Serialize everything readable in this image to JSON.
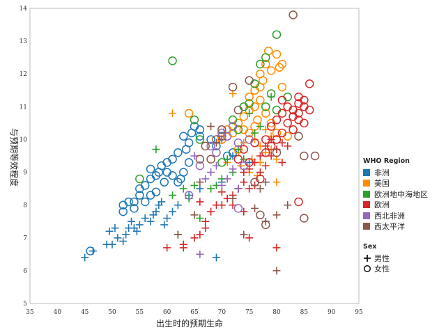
{
  "chart_data": {
    "type": "scatter",
    "title": "",
    "xlabel": "出生时的预期生命",
    "ylabel": "与预期等效程度",
    "xlim": [
      35,
      95
    ],
    "ylim": [
      5,
      14
    ],
    "x_ticks": [
      35,
      40,
      45,
      50,
      55,
      60,
      65,
      70,
      75,
      80,
      85,
      90,
      95
    ],
    "y_ticks": [
      5,
      6,
      7,
      8,
      9,
      10,
      11,
      12,
      13,
      14
    ],
    "grid": false,
    "legend_position": "right",
    "legend": {
      "color_title": "WHO Region",
      "shape_title": "Sex",
      "regions": [
        {
          "name": "非洲",
          "color": "#1f77b4"
        },
        {
          "name": "美国",
          "color": "#ff8c00"
        },
        {
          "name": "欧洲地中海地区",
          "color": "#2ca02c"
        },
        {
          "name": "欧洲",
          "color": "#d62728"
        },
        {
          "name": "西北非洲",
          "color": "#9467bd"
        },
        {
          "name": "西太平洋",
          "color": "#8c564b"
        }
      ],
      "sexes": [
        {
          "name": "男性",
          "marker": "plus"
        },
        {
          "name": "女性",
          "marker": "circle"
        }
      ]
    },
    "series": [
      {
        "name": "非洲",
        "sex": "男性",
        "points": [
          [
            45,
            6.4
          ],
          [
            46.5,
            6.6
          ],
          [
            49,
            6.8
          ],
          [
            50,
            6.8
          ],
          [
            49.5,
            7.2
          ],
          [
            50.5,
            7.3
          ],
          [
            51,
            7.0
          ],
          [
            52,
            6.9
          ],
          [
            52.5,
            7.1
          ],
          [
            53,
            7.3
          ],
          [
            53.5,
            7.5
          ],
          [
            54,
            7.3
          ],
          [
            54.5,
            7.2
          ],
          [
            55,
            7.4
          ],
          [
            56,
            7.6
          ],
          [
            57,
            7.5
          ],
          [
            57.5,
            7.7
          ],
          [
            58,
            7.8
          ],
          [
            58.5,
            8.0
          ],
          [
            59,
            8.1
          ],
          [
            59.5,
            7.4
          ],
          [
            60,
            7.6
          ],
          [
            61,
            7.8
          ],
          [
            62,
            8.0
          ],
          [
            64,
            8.3
          ],
          [
            66,
            8.5
          ],
          [
            69,
            6.4
          ],
          [
            70,
            8.7
          ],
          [
            72,
            9.5
          ],
          [
            73,
            8.5
          ],
          [
            75,
            9.3
          ]
        ]
      },
      {
        "name": "非洲",
        "sex": "女性",
        "points": [
          [
            46,
            6.6
          ],
          [
            52,
            7.8
          ],
          [
            52,
            8.0
          ],
          [
            53,
            8.1
          ],
          [
            54,
            8.1
          ],
          [
            54,
            7.9
          ],
          [
            55,
            8.3
          ],
          [
            55,
            8.5
          ],
          [
            56,
            8.6
          ],
          [
            56,
            8.1
          ],
          [
            57,
            8.3
          ],
          [
            57,
            8.8
          ],
          [
            57,
            9.1
          ],
          [
            58,
            8.4
          ],
          [
            58,
            8.9
          ],
          [
            58.5,
            9.0
          ],
          [
            59,
            9.2
          ],
          [
            59.5,
            8.7
          ],
          [
            60,
            9.0
          ],
          [
            60,
            9.3
          ],
          [
            61,
            8.9
          ],
          [
            61,
            9.4
          ],
          [
            62,
            8.7
          ],
          [
            62,
            9.6
          ],
          [
            63,
            9.0
          ],
          [
            63,
            10.1
          ],
          [
            64,
            9.3
          ],
          [
            64,
            9.9
          ],
          [
            64.5,
            10.2
          ],
          [
            65,
            10.4
          ],
          [
            66,
            10.3
          ],
          [
            66,
            10.1
          ],
          [
            68,
            10.0
          ],
          [
            69,
            9.8
          ],
          [
            70,
            10.1
          ],
          [
            71,
            9.5
          ],
          [
            72,
            9.6
          ],
          [
            63.5,
            9.7
          ],
          [
            62.5,
            8.8
          ]
        ]
      },
      {
        "name": "美国",
        "sex": "男性",
        "points": [
          [
            61,
            10.8
          ],
          [
            72,
            11.4
          ],
          [
            73,
            9.6
          ],
          [
            74,
            9.9
          ],
          [
            75,
            9.0
          ],
          [
            75.5,
            9.4
          ],
          [
            76,
            10.0
          ],
          [
            77,
            9.8
          ],
          [
            77,
            9.3
          ],
          [
            78,
            10.3
          ],
          [
            78,
            9.6
          ],
          [
            79,
            9.7
          ],
          [
            79,
            10.1
          ],
          [
            80,
            9.4
          ],
          [
            80,
            8.7
          ],
          [
            71,
            9.3
          ],
          [
            73.5,
            9.2
          ],
          [
            76.5,
            8.9
          ]
        ]
      },
      {
        "name": "美国",
        "sex": "女性",
        "points": [
          [
            64,
            10.8
          ],
          [
            70,
            10.0
          ],
          [
            71,
            10.3
          ],
          [
            72,
            10.2
          ],
          [
            73,
            10.5
          ],
          [
            74,
            10.7
          ],
          [
            75,
            10.9
          ],
          [
            75,
            11.3
          ],
          [
            76,
            11.0
          ],
          [
            76,
            11.5
          ],
          [
            77,
            11.2
          ],
          [
            77,
            11.6
          ],
          [
            77,
            12.0
          ],
          [
            77.5,
            11.8
          ],
          [
            78,
            12.3
          ],
          [
            78,
            10.8
          ],
          [
            78.5,
            12.7
          ],
          [
            79,
            12.1
          ],
          [
            80,
            12.6
          ],
          [
            80.5,
            12.2
          ],
          [
            81,
            12.3
          ],
          [
            81,
            11.6
          ],
          [
            76,
            10.4
          ],
          [
            75,
            10.2
          ],
          [
            74,
            10.3
          ],
          [
            79,
            10.5
          ],
          [
            80,
            10.2
          ],
          [
            76.5,
            10.6
          ],
          [
            73,
            9.7
          ],
          [
            82,
            10.1
          ]
        ]
      },
      {
        "name": "欧洲地中海地区",
        "sex": "男性",
        "points": [
          [
            58,
            9.7
          ],
          [
            61,
            8.3
          ],
          [
            63,
            8.5
          ],
          [
            64,
            8.2
          ],
          [
            65,
            8.6
          ],
          [
            66,
            7.6
          ],
          [
            68,
            8.5
          ],
          [
            70,
            8.8
          ],
          [
            71,
            9.4
          ],
          [
            72,
            9.0
          ],
          [
            73,
            9.7
          ],
          [
            74,
            9.4
          ],
          [
            75,
            10.8
          ],
          [
            76,
            10.2
          ],
          [
            77,
            10.4
          ],
          [
            79,
            11.3
          ],
          [
            62,
            7.1
          ],
          [
            69,
            8.6
          ]
        ]
      },
      {
        "name": "欧洲地中海地区",
        "sex": "女性",
        "points": [
          [
            55,
            8.8
          ],
          [
            61,
            12.4
          ],
          [
            65,
            10.6
          ],
          [
            66,
            10.0
          ],
          [
            70,
            9.3
          ],
          [
            72,
            10.6
          ],
          [
            73,
            10.3
          ],
          [
            74,
            11.0
          ],
          [
            75,
            11.1
          ],
          [
            76,
            11.7
          ],
          [
            77,
            12.3
          ],
          [
            78,
            12.5
          ],
          [
            78,
            11.0
          ],
          [
            79,
            11.4
          ],
          [
            80,
            13.2
          ],
          [
            80,
            10.9
          ],
          [
            82,
            11.3
          ]
        ]
      },
      {
        "name": "欧洲",
        "sex": "男性",
        "points": [
          [
            60,
            6.7
          ],
          [
            63,
            6.7
          ],
          [
            63,
            6.8
          ],
          [
            65,
            7.0
          ],
          [
            66,
            7.1
          ],
          [
            66,
            8.1
          ],
          [
            67,
            7.3
          ],
          [
            67,
            7.5
          ],
          [
            68,
            7.8
          ],
          [
            69,
            8.0
          ],
          [
            70,
            8.0
          ],
          [
            70,
            8.4
          ],
          [
            71,
            8.2
          ],
          [
            72,
            8.3
          ],
          [
            72,
            8.0
          ],
          [
            73,
            8.5
          ],
          [
            74,
            8.7
          ],
          [
            74,
            9.0
          ],
          [
            75,
            8.5
          ],
          [
            75,
            9.1
          ],
          [
            76,
            9.3
          ],
          [
            76,
            8.6
          ],
          [
            77,
            9.5
          ],
          [
            77,
            9.0
          ],
          [
            78,
            9.2
          ],
          [
            78,
            9.8
          ],
          [
            79,
            9.5
          ],
          [
            79,
            10.0
          ],
          [
            80,
            9.7
          ],
          [
            80,
            6.7
          ],
          [
            81,
            9.9
          ],
          [
            81,
            9.3
          ],
          [
            82,
            9.8
          ],
          [
            75,
            7.0
          ],
          [
            74,
            7.8
          ]
        ]
      },
      {
        "name": "欧洲",
        "sex": "女性",
        "points": [
          [
            73,
            9.4
          ],
          [
            74,
            9.7
          ],
          [
            75,
            9.3
          ],
          [
            76,
            9.9
          ],
          [
            77,
            8.8
          ],
          [
            78,
            10.0
          ],
          [
            78,
            9.6
          ],
          [
            79,
            9.8
          ],
          [
            79,
            10.4
          ],
          [
            80,
            10.0
          ],
          [
            80,
            10.6
          ],
          [
            81,
            10.2
          ],
          [
            81,
            10.8
          ],
          [
            82,
            10.5
          ],
          [
            82,
            11.0
          ],
          [
            83,
            10.7
          ],
          [
            83,
            10.3
          ],
          [
            84,
            10.6
          ],
          [
            84,
            11.1
          ],
          [
            84,
            11.3
          ],
          [
            85,
            11.0
          ],
          [
            85,
            10.5
          ],
          [
            85,
            11.2
          ],
          [
            86,
            10.9
          ],
          [
            86,
            11.7
          ],
          [
            83,
            10.9
          ],
          [
            84,
            8.1
          ],
          [
            81,
            11.2
          ],
          [
            84,
            10.8
          ]
        ]
      },
      {
        "name": "西北非洲",
        "sex": "男性",
        "points": [
          [
            65,
            9.5
          ],
          [
            66,
            6.5
          ],
          [
            67,
            8.8
          ],
          [
            68,
            9.0
          ],
          [
            69,
            9.2
          ],
          [
            70,
            8.6
          ],
          [
            71,
            8.8
          ],
          [
            72,
            9.1
          ],
          [
            73,
            8.5
          ]
        ]
      },
      {
        "name": "西北非洲",
        "sex": "女性",
        "points": [
          [
            64,
            8.3
          ],
          [
            66,
            9.2
          ],
          [
            68,
            9.8
          ],
          [
            69,
            9.6
          ],
          [
            70,
            10.2
          ],
          [
            71,
            10.1
          ],
          [
            72,
            10.4
          ],
          [
            73,
            9.9
          ],
          [
            73,
            7.9
          ],
          [
            74,
            9.2
          ],
          [
            75,
            10.0
          ]
        ]
      },
      {
        "name": "西太平洋",
        "sex": "男性",
        "points": [
          [
            62,
            7.1
          ],
          [
            65,
            7.7
          ],
          [
            66,
            8.7
          ],
          [
            68,
            10.4
          ],
          [
            69,
            9.9
          ],
          [
            70,
            10.0
          ],
          [
            72,
            8.2
          ],
          [
            74,
            7.1
          ],
          [
            76,
            7.9
          ],
          [
            77,
            8.5
          ],
          [
            78,
            7.5
          ],
          [
            78,
            8.7
          ],
          [
            80,
            7.7
          ],
          [
            80,
            6.0
          ],
          [
            82,
            8.0
          ]
        ]
      },
      {
        "name": "西太平洋",
        "sex": "女性",
        "points": [
          [
            66,
            9.4
          ],
          [
            67,
            9.8
          ],
          [
            68,
            9.4
          ],
          [
            69,
            10.0
          ],
          [
            70,
            10.3
          ],
          [
            72,
            11.6
          ],
          [
            73,
            10.9
          ],
          [
            75,
            11.8
          ],
          [
            76,
            8.7
          ],
          [
            77,
            7.7
          ],
          [
            78,
            7.4
          ],
          [
            80,
            9.6
          ],
          [
            83,
            13.8
          ],
          [
            84,
            10.1
          ],
          [
            85,
            9.5
          ],
          [
            85,
            7.6
          ],
          [
            87,
            9.5
          ]
        ]
      }
    ]
  }
}
